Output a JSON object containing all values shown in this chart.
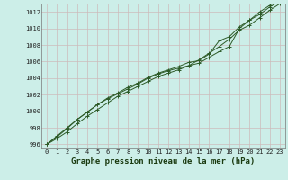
{
  "title": "",
  "xlabel": "Graphe pression niveau de la mer (hPa)",
  "ylabel": "",
  "background_color": "#cceee8",
  "grid_color": "#ccbbbb",
  "line_color": "#2d5a27",
  "xlim": [
    -0.5,
    23.5
  ],
  "ylim": [
    995.5,
    1013.0
  ],
  "yticks": [
    996,
    998,
    1000,
    1002,
    1004,
    1006,
    1008,
    1010,
    1012
  ],
  "xticks": [
    0,
    1,
    2,
    3,
    4,
    5,
    6,
    7,
    8,
    9,
    10,
    11,
    12,
    13,
    14,
    15,
    16,
    17,
    18,
    19,
    20,
    21,
    22,
    23
  ],
  "series": [
    [
      996.0,
      996.7,
      997.5,
      998.5,
      999.4,
      1000.2,
      1001.0,
      1001.8,
      1002.4,
      1003.0,
      1003.6,
      1004.2,
      1004.6,
      1005.0,
      1005.5,
      1005.8,
      1006.5,
      1007.2,
      1007.8,
      1010.0,
      1011.0,
      1012.0,
      1012.8,
      1013.5
    ],
    [
      996.0,
      997.0,
      998.0,
      999.0,
      999.9,
      1000.8,
      1001.5,
      1002.1,
      1002.7,
      1003.3,
      1004.0,
      1004.5,
      1004.9,
      1005.2,
      1005.5,
      1006.2,
      1007.0,
      1007.8,
      1008.7,
      1009.8,
      1010.4,
      1011.3,
      1012.2,
      1013.0
    ],
    [
      996.0,
      996.9,
      997.9,
      999.0,
      999.9,
      1000.8,
      1001.6,
      1002.2,
      1002.9,
      1003.4,
      1004.1,
      1004.6,
      1005.0,
      1005.4,
      1005.9,
      1006.1,
      1006.9,
      1008.5,
      1009.0,
      1010.2,
      1011.0,
      1011.7,
      1012.6,
      1013.3
    ]
  ]
}
